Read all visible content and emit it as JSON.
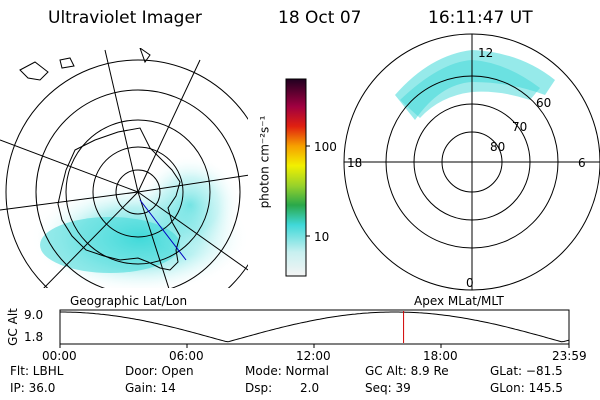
{
  "header": {
    "instrument": "Ultraviolet Imager",
    "date": "18 Oct 07",
    "time": "16:11:47 UT"
  },
  "colorbar": {
    "label": "photon cm⁻²s⁻¹",
    "ticks": [
      "100",
      "10"
    ]
  },
  "panels": {
    "left_caption": "Geographic Lat/Lon",
    "right_caption": "Apex MLat/MLT",
    "mlt_labels": {
      "top": "12",
      "left": "18",
      "right": "6",
      "bottom": "0"
    },
    "mlat_labels": [
      "60",
      "70",
      "80"
    ]
  },
  "orbit": {
    "axis_title": "GC Alt",
    "y_ticks": [
      "9.0",
      "1.8"
    ],
    "x_ticks": [
      "00:00",
      "06:00",
      "12:00",
      "18:00",
      "23:59"
    ],
    "marker_time_fraction": 0.675
  },
  "status": {
    "flt": "Flt: LBHL",
    "ip": "IP: 36.0",
    "door": "Door: Open",
    "gain": "Gain: 14",
    "mode": "Mode: Normal",
    "dsp_label": "Dsp:",
    "dsp_value": "2.0",
    "gc_alt": "GC Alt: 8.9 Re",
    "seq": "Seq: 39",
    "glat": "GLat: −81.5",
    "glon": "GLon: 145.5"
  },
  "colors": {
    "aurora": "#3fd8d8",
    "marker": "#d00000"
  }
}
